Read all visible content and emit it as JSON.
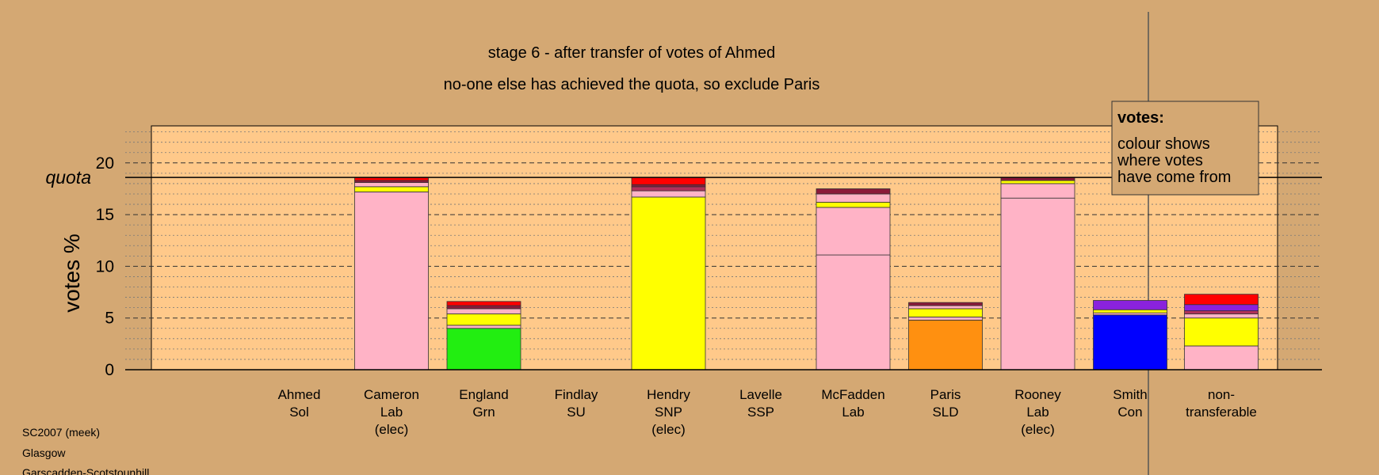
{
  "chart_data": {
    "type": "bar",
    "stacked": true,
    "title": "stage 6 - after transfer of votes of Ahmed",
    "subtitle": "no-one else has achieved the quota, so exclude Paris",
    "ylabel": "votes %",
    "ylim": [
      0,
      23
    ],
    "yticks": [
      0,
      5,
      10,
      15,
      20
    ],
    "quota": 18.6,
    "quota_label": "quota",
    "grid": true,
    "legend": {
      "placement": "top-right",
      "title": "votes:",
      "lines": [
        "colour shows",
        "where votes",
        "have come from"
      ]
    },
    "categories": [
      {
        "lines": [
          "Ahmed",
          "Sol"
        ],
        "segments": []
      },
      {
        "lines": [
          "Cameron",
          "Lab",
          "(elec)"
        ],
        "segments": [
          {
            "value": 17.2,
            "color": "#ffb3c6"
          },
          {
            "value": 0.5,
            "color": "#ffff00"
          },
          {
            "value": 0.4,
            "color": "#ffb3c6"
          },
          {
            "value": 0.2,
            "color": "#8b1a3a"
          },
          {
            "value": 0.3,
            "color": "#ff0000"
          }
        ]
      },
      {
        "lines": [
          "England",
          "Grn"
        ],
        "segments": [
          {
            "value": 4.0,
            "color": "#22ee11"
          },
          {
            "value": 0.3,
            "color": "#ffb3c6"
          },
          {
            "value": 1.1,
            "color": "#ffff00"
          },
          {
            "value": 0.5,
            "color": "#ffb3c6"
          },
          {
            "value": 0.3,
            "color": "#8b1a3a"
          },
          {
            "value": 0.4,
            "color": "#ff0000"
          }
        ]
      },
      {
        "lines": [
          "Findlay",
          "SU"
        ],
        "segments": []
      },
      {
        "lines": [
          "Hendry",
          "SNP",
          "(elec)"
        ],
        "segments": [
          {
            "value": 16.7,
            "color": "#ffff00"
          },
          {
            "value": 0.6,
            "color": "#ffb3c6"
          },
          {
            "value": 0.4,
            "color": "#b0305a"
          },
          {
            "value": 0.2,
            "color": "#8b1a3a"
          },
          {
            "value": 0.7,
            "color": "#ff0000"
          }
        ]
      },
      {
        "lines": [
          "Lavelle",
          "SSP"
        ],
        "segments": []
      },
      {
        "lines": [
          "McFadden",
          "Lab"
        ],
        "segments": [
          {
            "value": 11.1,
            "color": "#ffb3c6"
          },
          {
            "value": 4.6,
            "color": "#ffb3c6"
          },
          {
            "value": 0.5,
            "color": "#ffff00"
          },
          {
            "value": 0.8,
            "color": "#ffb3c6"
          },
          {
            "value": 0.5,
            "color": "#8b1a3a"
          }
        ]
      },
      {
        "lines": [
          "Paris",
          "SLD"
        ],
        "segments": [
          {
            "value": 4.8,
            "color": "#ff9010"
          },
          {
            "value": 0.3,
            "color": "#ffb3c6"
          },
          {
            "value": 0.8,
            "color": "#ffff00"
          },
          {
            "value": 0.3,
            "color": "#ffb3c6"
          },
          {
            "value": 0.3,
            "color": "#8b1a3a"
          }
        ]
      },
      {
        "lines": [
          "Rooney",
          "Lab",
          "(elec)"
        ],
        "segments": [
          {
            "value": 16.6,
            "color": "#ffb3c6"
          },
          {
            "value": 1.4,
            "color": "#ffb3c6"
          },
          {
            "value": 0.3,
            "color": "#ffff00"
          },
          {
            "value": 0.3,
            "color": "#8b1a3a"
          }
        ]
      },
      {
        "lines": [
          "Smith",
          "Con"
        ],
        "segments": [
          {
            "value": 5.3,
            "color": "#0000ff"
          },
          {
            "value": 0.2,
            "color": "#ffb3c6"
          },
          {
            "value": 0.3,
            "color": "#ffff00"
          },
          {
            "value": 0.9,
            "color": "#8a22dd"
          }
        ]
      },
      {
        "lines": [
          "non-",
          "transferable"
        ],
        "segments": [
          {
            "value": 2.3,
            "color": "#ffb3c6"
          },
          {
            "value": 2.7,
            "color": "#ffff00"
          },
          {
            "value": 0.4,
            "color": "#ffb3c6"
          },
          {
            "value": 0.3,
            "color": "#b0305a"
          },
          {
            "value": 0.6,
            "color": "#8a22dd"
          },
          {
            "value": 1.0,
            "color": "#ff0000"
          }
        ]
      }
    ]
  },
  "footer": {
    "lines": [
      "SC2007 (meek)",
      "Glasgow",
      "Garscadden-Scotstounhill"
    ]
  }
}
